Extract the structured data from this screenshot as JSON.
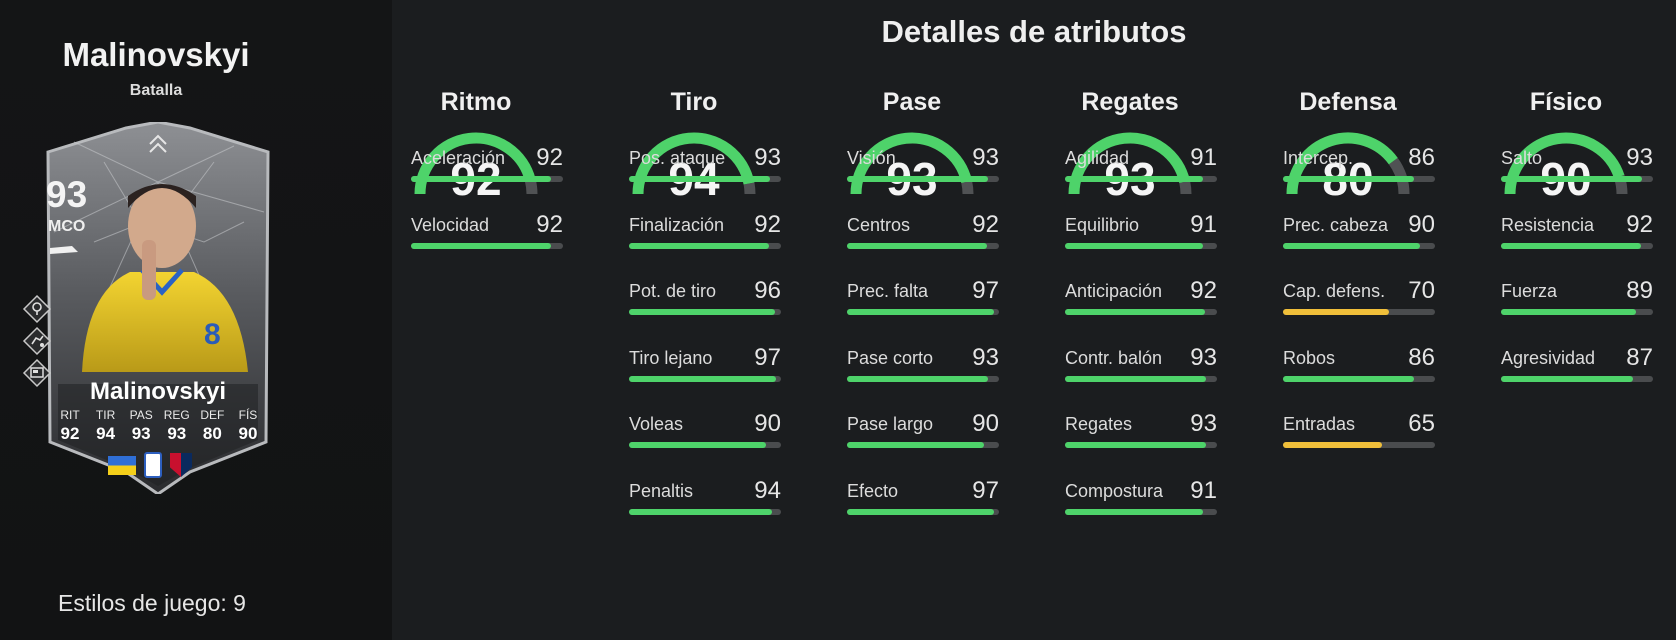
{
  "player": {
    "name": "Malinovskyi",
    "version": "Batalla",
    "playstyles": "Estilos de juego: 9"
  },
  "card": {
    "rating": "93",
    "position": "MCO",
    "name": "Malinovskyi",
    "stats": [
      {
        "label": "RIT",
        "value": "92"
      },
      {
        "label": "TIR",
        "value": "94"
      },
      {
        "label": "PAS",
        "value": "93"
      },
      {
        "label": "REG",
        "value": "93"
      },
      {
        "label": "DEF",
        "value": "80"
      },
      {
        "label": "FÍS",
        "value": "90"
      }
    ],
    "icons": [
      "location-pin-icon",
      "dribble-icon",
      "display-icon"
    ]
  },
  "section_title": "Detalles de atributos",
  "colors": {
    "green": "#4ed36a",
    "yellow": "#f0bf3a",
    "track": "#4a4c4e",
    "gauge_rest": "#505254"
  },
  "categories": [
    {
      "id": "ritmo",
      "title": "Ritmo",
      "value": 92,
      "attributes": [
        {
          "name": "Aceleración",
          "value": 92,
          "color": "green"
        },
        {
          "name": "Velocidad",
          "value": 92,
          "color": "green"
        }
      ]
    },
    {
      "id": "tiro",
      "title": "Tiro",
      "value": 94,
      "attributes": [
        {
          "name": "Pos. ataque",
          "value": 93,
          "color": "green"
        },
        {
          "name": "Finalización",
          "value": 92,
          "color": "green"
        },
        {
          "name": "Pot. de tiro",
          "value": 96,
          "color": "green"
        },
        {
          "name": "Tiro lejano",
          "value": 97,
          "color": "green"
        },
        {
          "name": "Voleas",
          "value": 90,
          "color": "green"
        },
        {
          "name": "Penaltis",
          "value": 94,
          "color": "green"
        }
      ]
    },
    {
      "id": "pase",
      "title": "Pase",
      "value": 93,
      "attributes": [
        {
          "name": "Visión",
          "value": 93,
          "color": "green"
        },
        {
          "name": "Centros",
          "value": 92,
          "color": "green"
        },
        {
          "name": "Prec. falta",
          "value": 97,
          "color": "green"
        },
        {
          "name": "Pase corto",
          "value": 93,
          "color": "green"
        },
        {
          "name": "Pase largo",
          "value": 90,
          "color": "green"
        },
        {
          "name": "Efecto",
          "value": 97,
          "color": "green"
        }
      ]
    },
    {
      "id": "regates",
      "title": "Regates",
      "value": 93,
      "attributes": [
        {
          "name": "Agilidad",
          "value": 91,
          "color": "green"
        },
        {
          "name": "Equilibrio",
          "value": 91,
          "color": "green"
        },
        {
          "name": "Anticipación",
          "value": 92,
          "color": "green"
        },
        {
          "name": "Contr. balón",
          "value": 93,
          "color": "green"
        },
        {
          "name": "Regates",
          "value": 93,
          "color": "green"
        },
        {
          "name": "Compostura",
          "value": 91,
          "color": "green"
        }
      ]
    },
    {
      "id": "defensa",
      "title": "Defensa",
      "value": 80,
      "attributes": [
        {
          "name": "Intercep.",
          "value": 86,
          "color": "green"
        },
        {
          "name": "Prec. cabeza",
          "value": 90,
          "color": "green"
        },
        {
          "name": "Cap. defens.",
          "value": 70,
          "color": "yellow"
        },
        {
          "name": "Robos",
          "value": 86,
          "color": "green"
        },
        {
          "name": "Entradas",
          "value": 65,
          "color": "yellow"
        }
      ]
    },
    {
      "id": "fisico",
      "title": "Físico",
      "value": 90,
      "attributes": [
        {
          "name": "Salto",
          "value": 93,
          "color": "green"
        },
        {
          "name": "Resistencia",
          "value": 92,
          "color": "green"
        },
        {
          "name": "Fuerza",
          "value": 89,
          "color": "green"
        },
        {
          "name": "Agresividad",
          "value": 87,
          "color": "green"
        }
      ]
    }
  ]
}
